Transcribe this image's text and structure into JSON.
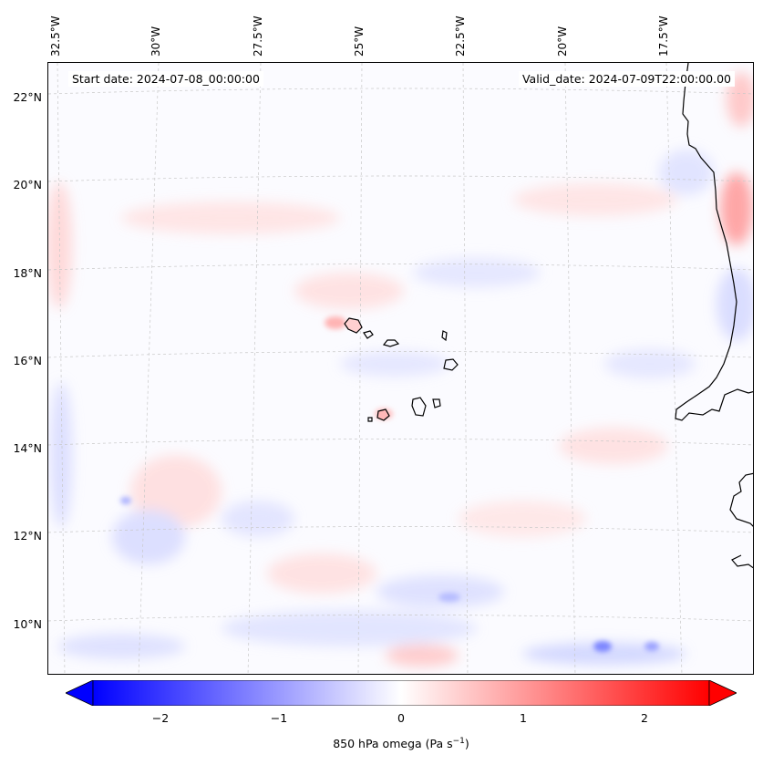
{
  "map": {
    "start_date": "Start date: 2024-07-08_00:00:00",
    "valid_date": "Valid_date: 2024-07-09T22:00:00.00",
    "lon_labels": [
      "32.5°W",
      "30°W",
      "27.5°W",
      "25°W",
      "22.5°W",
      "20°W",
      "17.5°W"
    ],
    "lat_labels": [
      "22°N",
      "20°N",
      "18°N",
      "16°N",
      "14°N",
      "12°N",
      "10°N"
    ],
    "coast_color": "#000000",
    "grid_color": "#c8c8c8"
  },
  "colorbar": {
    "label_prefix": "850 hPa omega (Pa s",
    "label_exp": "−1",
    "label_suffix": ")",
    "ticks": [
      "−2",
      "−1",
      "0",
      "1",
      "2"
    ],
    "min": -2.6,
    "max": 2.6,
    "low_color": "#0000ff",
    "high_color": "#ff0000",
    "mid_color": "#ffffff"
  }
}
